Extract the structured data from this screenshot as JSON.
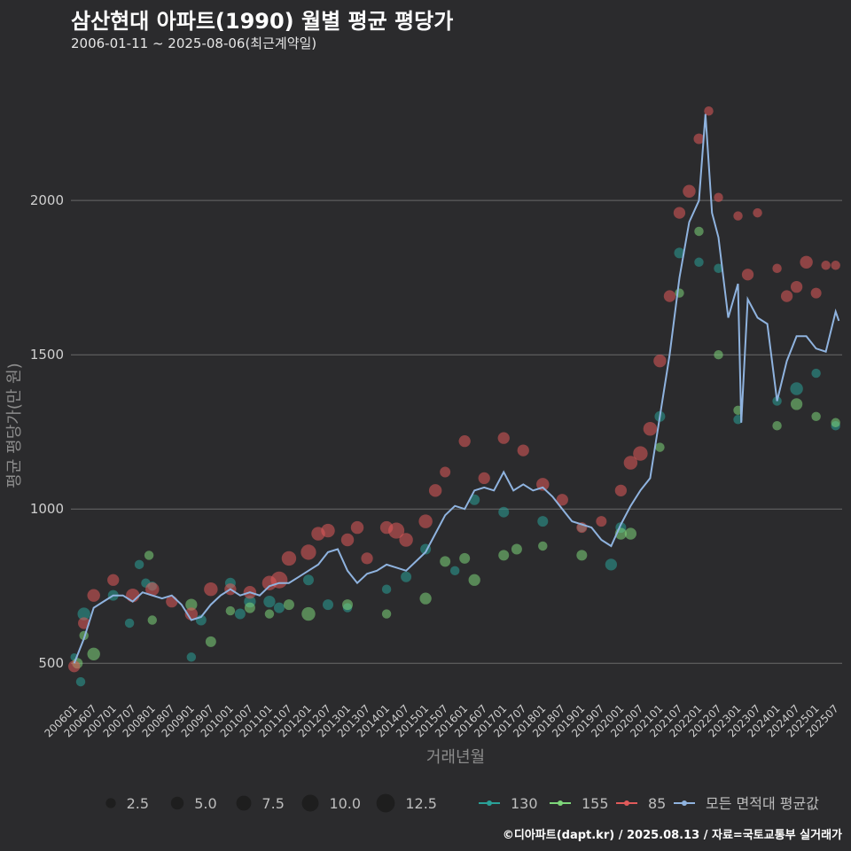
{
  "title": "삼산현대 아파트(1990) 월별 평균 평당가",
  "subtitle": "2006-01-11 ~ 2025-08-06(최근계약일)",
  "footer": "©디아파트(dapt.kr) / 2025.08.13 / 자료=국토교통부 실거래가",
  "chart_data": {
    "type": "scatter",
    "title": "삼산현대 아파트(1990) 월별 평균 평당가",
    "subtitle": "2006-01-11 ~ 2025-08-06(최근계약일)",
    "xlabel": "거래년월",
    "ylabel": "평균 평당가(만 원)",
    "ylim": [
      380,
      2420
    ],
    "yticks": [
      500,
      1000,
      1500,
      2000
    ],
    "grid": true,
    "x_range": [
      "200512",
      "202509"
    ],
    "xticks": [
      "200601",
      "200607",
      "200701",
      "200707",
      "200801",
      "200807",
      "200901",
      "200907",
      "201001",
      "201007",
      "201101",
      "201107",
      "201201",
      "201207",
      "201301",
      "201307",
      "201401",
      "201407",
      "201501",
      "201507",
      "201601",
      "201607",
      "201701",
      "201707",
      "201801",
      "201807",
      "201901",
      "201907",
      "202001",
      "202007",
      "202101",
      "202107",
      "202201",
      "202207",
      "202301",
      "202307",
      "202401",
      "202407",
      "202501",
      "202507"
    ],
    "size_legend": {
      "title": "",
      "values": [
        2.5,
        5.0,
        7.5,
        10.0,
        12.5
      ],
      "labels": [
        "2.5",
        "5.0",
        "7.5",
        "10.0",
        "12.5"
      ]
    },
    "colors": {
      "130": "#2aa198",
      "155": "#7ed67a",
      "85": "#e05a5a",
      "모든 면적대 평균값": "#8fb3df"
    },
    "legend_position": "bottom",
    "series": [
      {
        "name": "130",
        "kind": "points",
        "points": [
          [
            "200601",
            1,
            520
          ],
          [
            "200603",
            2,
            440
          ],
          [
            "200604",
            5,
            660
          ],
          [
            "200701",
            3,
            720
          ],
          [
            "200706",
            2,
            630
          ],
          [
            "200709",
            2,
            820
          ],
          [
            "200711",
            2,
            760
          ],
          [
            "200801",
            2,
            750
          ],
          [
            "200901",
            2,
            520
          ],
          [
            "200904",
            3,
            640
          ],
          [
            "201001",
            3,
            760
          ],
          [
            "201004",
            3,
            660
          ],
          [
            "201007",
            4,
            700
          ],
          [
            "201101",
            4,
            700
          ],
          [
            "201104",
            3,
            680
          ],
          [
            "201201",
            3,
            770
          ],
          [
            "201207",
            3,
            690
          ],
          [
            "201301",
            2,
            680
          ],
          [
            "201401",
            2,
            740
          ],
          [
            "201407",
            3,
            780
          ],
          [
            "201501",
            3,
            870
          ],
          [
            "201510",
            2,
            800
          ],
          [
            "201604",
            3,
            1030
          ],
          [
            "201701",
            3,
            990
          ],
          [
            "201801",
            3,
            960
          ],
          [
            "201901",
            2,
            940
          ],
          [
            "201910",
            4,
            820
          ],
          [
            "202001",
            3,
            940
          ],
          [
            "202101",
            3,
            1300
          ],
          [
            "202107",
            3,
            1830
          ],
          [
            "202201",
            2,
            1800
          ],
          [
            "202207",
            2,
            1780
          ],
          [
            "202301",
            2,
            1290
          ],
          [
            "202401",
            2,
            1350
          ],
          [
            "202407",
            5,
            1390
          ],
          [
            "202501",
            2,
            1440
          ],
          [
            "202507",
            2,
            1270
          ]
        ]
      },
      {
        "name": "155",
        "kind": "points",
        "points": [
          [
            "200602",
            3,
            500
          ],
          [
            "200604",
            2,
            590
          ],
          [
            "200607",
            5,
            530
          ],
          [
            "200712",
            2,
            850
          ],
          [
            "200801",
            2,
            640
          ],
          [
            "200901",
            4,
            690
          ],
          [
            "200907",
            3,
            570
          ],
          [
            "201001",
            2,
            670
          ],
          [
            "201007",
            3,
            680
          ],
          [
            "201101",
            2,
            660
          ],
          [
            "201107",
            3,
            690
          ],
          [
            "201201",
            6,
            660
          ],
          [
            "201301",
            3,
            690
          ],
          [
            "201401",
            2,
            660
          ],
          [
            "201501",
            4,
            710
          ],
          [
            "201507",
            3,
            830
          ],
          [
            "201601",
            3,
            840
          ],
          [
            "201604",
            4,
            770
          ],
          [
            "201701",
            3,
            850
          ],
          [
            "201705",
            3,
            870
          ],
          [
            "201801",
            2,
            880
          ],
          [
            "201901",
            3,
            850
          ],
          [
            "202001",
            4,
            920
          ],
          [
            "202004",
            4,
            920
          ],
          [
            "202101",
            2,
            1200
          ],
          [
            "202107",
            2,
            1700
          ],
          [
            "202201",
            2,
            1900
          ],
          [
            "202207",
            2,
            1500
          ],
          [
            "202301",
            2,
            1320
          ],
          [
            "202401",
            2,
            1270
          ],
          [
            "202407",
            4,
            1340
          ],
          [
            "202501",
            2,
            1300
          ],
          [
            "202507",
            2,
            1280
          ]
        ]
      },
      {
        "name": "85",
        "kind": "points",
        "points": [
          [
            "200601",
            4,
            490
          ],
          [
            "200604",
            4,
            630
          ],
          [
            "200607",
            5,
            720
          ],
          [
            "200701",
            4,
            770
          ],
          [
            "200707",
            6,
            720
          ],
          [
            "200801",
            6,
            740
          ],
          [
            "200807",
            4,
            700
          ],
          [
            "200901",
            5,
            660
          ],
          [
            "200907",
            6,
            740
          ],
          [
            "201001",
            4,
            740
          ],
          [
            "201007",
            5,
            730
          ],
          [
            "201101",
            7,
            760
          ],
          [
            "201104",
            10,
            770
          ],
          [
            "201107",
            7,
            840
          ],
          [
            "201201",
            8,
            860
          ],
          [
            "201204",
            6,
            920
          ],
          [
            "201207",
            6,
            930
          ],
          [
            "201301",
            5,
            900
          ],
          [
            "201304",
            5,
            940
          ],
          [
            "201307",
            4,
            840
          ],
          [
            "201401",
            5,
            940
          ],
          [
            "201404",
            9,
            930
          ],
          [
            "201407",
            6,
            900
          ],
          [
            "201501",
            6,
            960
          ],
          [
            "201504",
            5,
            1060
          ],
          [
            "201507",
            3,
            1120
          ],
          [
            "201601",
            4,
            1220
          ],
          [
            "201607",
            4,
            1100
          ],
          [
            "201701",
            4,
            1230
          ],
          [
            "201707",
            4,
            1190
          ],
          [
            "201801",
            5,
            1080
          ],
          [
            "201807",
            4,
            1030
          ],
          [
            "201901",
            3,
            940
          ],
          [
            "201907",
            3,
            960
          ],
          [
            "202001",
            4,
            1060
          ],
          [
            "202004",
            6,
            1150
          ],
          [
            "202007",
            7,
            1180
          ],
          [
            "202010",
            6,
            1260
          ],
          [
            "202101",
            5,
            1480
          ],
          [
            "202104",
            4,
            1690
          ],
          [
            "202107",
            4,
            1960
          ],
          [
            "202110",
            5,
            2030
          ],
          [
            "202201",
            3,
            2200
          ],
          [
            "202204",
            2,
            2290
          ],
          [
            "202207",
            2,
            2010
          ],
          [
            "202301",
            2,
            1950
          ],
          [
            "202304",
            4,
            1760
          ],
          [
            "202307",
            2,
            1960
          ],
          [
            "202401",
            2,
            1780
          ],
          [
            "202404",
            4,
            1690
          ],
          [
            "202407",
            4,
            1720
          ],
          [
            "202410",
            5,
            1800
          ],
          [
            "202501",
            3,
            1700
          ],
          [
            "202504",
            2,
            1790
          ],
          [
            "202507",
            2,
            1790
          ]
        ]
      },
      {
        "name": "모든 면적대 평균값",
        "kind": "line",
        "points": [
          [
            "200601",
            500
          ],
          [
            "200604",
            580
          ],
          [
            "200607",
            680
          ],
          [
            "200610",
            700
          ],
          [
            "200701",
            720
          ],
          [
            "200704",
            720
          ],
          [
            "200707",
            700
          ],
          [
            "200710",
            730
          ],
          [
            "200801",
            720
          ],
          [
            "200804",
            710
          ],
          [
            "200807",
            720
          ],
          [
            "200810",
            690
          ],
          [
            "200901",
            640
          ],
          [
            "200904",
            650
          ],
          [
            "200907",
            690
          ],
          [
            "200910",
            720
          ],
          [
            "201001",
            740
          ],
          [
            "201004",
            720
          ],
          [
            "201007",
            730
          ],
          [
            "201010",
            720
          ],
          [
            "201101",
            750
          ],
          [
            "201104",
            760
          ],
          [
            "201107",
            760
          ],
          [
            "201110",
            780
          ],
          [
            "201201",
            800
          ],
          [
            "201204",
            820
          ],
          [
            "201207",
            860
          ],
          [
            "201210",
            870
          ],
          [
            "201301",
            800
          ],
          [
            "201304",
            760
          ],
          [
            "201307",
            790
          ],
          [
            "201310",
            800
          ],
          [
            "201401",
            820
          ],
          [
            "201404",
            810
          ],
          [
            "201407",
            800
          ],
          [
            "201410",
            830
          ],
          [
            "201501",
            860
          ],
          [
            "201504",
            920
          ],
          [
            "201507",
            980
          ],
          [
            "201510",
            1010
          ],
          [
            "201601",
            1000
          ],
          [
            "201604",
            1060
          ],
          [
            "201607",
            1070
          ],
          [
            "201610",
            1060
          ],
          [
            "201701",
            1120
          ],
          [
            "201704",
            1060
          ],
          [
            "201707",
            1080
          ],
          [
            "201710",
            1060
          ],
          [
            "201801",
            1070
          ],
          [
            "201804",
            1040
          ],
          [
            "201807",
            1000
          ],
          [
            "201810",
            960
          ],
          [
            "201901",
            950
          ],
          [
            "201904",
            940
          ],
          [
            "201907",
            900
          ],
          [
            "201910",
            880
          ],
          [
            "202001",
            950
          ],
          [
            "202004",
            1010
          ],
          [
            "202007",
            1060
          ],
          [
            "202010",
            1100
          ],
          [
            "202101",
            1300
          ],
          [
            "202104",
            1500
          ],
          [
            "202107",
            1750
          ],
          [
            "202110",
            1930
          ],
          [
            "202201",
            2000
          ],
          [
            "202203",
            2280
          ],
          [
            "202205",
            1960
          ],
          [
            "202207",
            1880
          ],
          [
            "202210",
            1620
          ],
          [
            "202301",
            1730
          ],
          [
            "202302",
            1280
          ],
          [
            "202304",
            1680
          ],
          [
            "202307",
            1620
          ],
          [
            "202310",
            1600
          ],
          [
            "202401",
            1350
          ],
          [
            "202404",
            1480
          ],
          [
            "202407",
            1560
          ],
          [
            "202410",
            1560
          ],
          [
            "202501",
            1520
          ],
          [
            "202504",
            1510
          ],
          [
            "202507",
            1640
          ],
          [
            "202508",
            1610
          ]
        ]
      }
    ]
  }
}
